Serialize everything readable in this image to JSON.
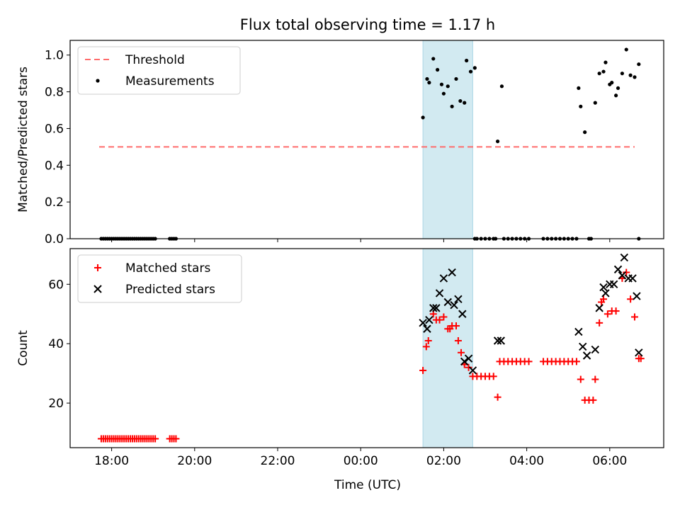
{
  "title": "Flux total observing time = 1.17 h",
  "colors": {
    "threshold": "#ff6b6b",
    "measurement": "#000000",
    "matched": "#ff0000",
    "predicted": "#000000",
    "band": "#add8e6"
  },
  "chart_data": [
    {
      "type": "scatter",
      "name": "top-panel",
      "ylabel": "Matched/Predicted stars",
      "ylim": [
        0,
        1.08
      ],
      "yticks": [
        "0.0",
        "0.2",
        "0.4",
        "0.6",
        "0.8",
        "1.0"
      ],
      "xlim_hours": [
        17.0,
        31.3
      ],
      "highlight_band_hours": [
        25.5,
        26.7
      ],
      "legend": [
        "Threshold",
        "Measurements"
      ],
      "threshold": {
        "label": "Threshold",
        "x_hours": [
          17.7,
          30.6
        ],
        "y": 0.5
      },
      "series": [
        {
          "name": "Measurements",
          "points": [
            [
              17.75,
              0
            ],
            [
              17.8,
              0
            ],
            [
              17.85,
              0
            ],
            [
              17.9,
              0
            ],
            [
              17.95,
              0
            ],
            [
              18.0,
              0
            ],
            [
              18.05,
              0
            ],
            [
              18.1,
              0
            ],
            [
              18.15,
              0
            ],
            [
              18.2,
              0
            ],
            [
              18.25,
              0
            ],
            [
              18.3,
              0
            ],
            [
              18.35,
              0
            ],
            [
              18.4,
              0
            ],
            [
              18.45,
              0
            ],
            [
              18.5,
              0
            ],
            [
              18.55,
              0
            ],
            [
              18.6,
              0
            ],
            [
              18.65,
              0
            ],
            [
              18.7,
              0
            ],
            [
              18.75,
              0
            ],
            [
              18.8,
              0
            ],
            [
              18.85,
              0
            ],
            [
              18.9,
              0
            ],
            [
              18.95,
              0
            ],
            [
              19.0,
              0
            ],
            [
              19.05,
              0
            ],
            [
              19.4,
              0
            ],
            [
              19.45,
              0
            ],
            [
              19.5,
              0
            ],
            [
              19.55,
              0
            ],
            [
              25.5,
              0.66
            ],
            [
              25.6,
              0.87
            ],
            [
              25.65,
              0.85
            ],
            [
              25.75,
              0.98
            ],
            [
              25.85,
              0.92
            ],
            [
              25.95,
              0.84
            ],
            [
              26.0,
              0.79
            ],
            [
              26.1,
              0.83
            ],
            [
              26.2,
              0.72
            ],
            [
              26.3,
              0.87
            ],
            [
              26.4,
              0.75
            ],
            [
              26.5,
              0.74
            ],
            [
              26.55,
              0.97
            ],
            [
              26.65,
              0.91
            ],
            [
              26.75,
              0.93
            ],
            [
              26.75,
              0
            ],
            [
              26.8,
              0
            ],
            [
              26.9,
              0
            ],
            [
              27.0,
              0
            ],
            [
              27.1,
              0
            ],
            [
              27.2,
              0
            ],
            [
              27.25,
              0
            ],
            [
              27.3,
              0.53
            ],
            [
              27.4,
              0.83
            ],
            [
              27.45,
              0
            ],
            [
              27.55,
              0
            ],
            [
              27.65,
              0
            ],
            [
              27.75,
              0
            ],
            [
              27.85,
              0
            ],
            [
              27.95,
              0
            ],
            [
              28.05,
              0
            ],
            [
              28.4,
              0
            ],
            [
              28.5,
              0
            ],
            [
              28.6,
              0
            ],
            [
              28.7,
              0
            ],
            [
              28.8,
              0
            ],
            [
              28.9,
              0
            ],
            [
              29.0,
              0
            ],
            [
              29.1,
              0
            ],
            [
              29.2,
              0
            ],
            [
              29.25,
              0.82
            ],
            [
              29.3,
              0.72
            ],
            [
              29.4,
              0.58
            ],
            [
              29.5,
              0
            ],
            [
              29.55,
              0
            ],
            [
              29.65,
              0.74
            ],
            [
              29.75,
              0.9
            ],
            [
              29.85,
              0.91
            ],
            [
              29.9,
              0.96
            ],
            [
              30.0,
              0.84
            ],
            [
              30.05,
              0.85
            ],
            [
              30.15,
              0.78
            ],
            [
              30.2,
              0.82
            ],
            [
              30.3,
              0.9
            ],
            [
              30.4,
              1.03
            ],
            [
              30.5,
              0.89
            ],
            [
              30.6,
              0.88
            ],
            [
              30.7,
              0.95
            ],
            [
              30.7,
              0
            ]
          ]
        }
      ]
    },
    {
      "type": "scatter",
      "name": "bottom-panel",
      "xlabel": "Time (UTC)",
      "ylabel": "Count",
      "ylim": [
        5,
        72
      ],
      "yticks": [
        "20",
        "40",
        "60"
      ],
      "xticks": [
        "18:00",
        "20:00",
        "22:00",
        "00:00",
        "02:00",
        "04:00",
        "06:00"
      ],
      "xlim_hours": [
        17.0,
        31.3
      ],
      "highlight_band_hours": [
        25.5,
        26.7
      ],
      "legend": [
        "Matched stars",
        "Predicted stars"
      ],
      "series": [
        {
          "name": "Matched stars",
          "points": [
            [
              17.75,
              8
            ],
            [
              17.8,
              8
            ],
            [
              17.85,
              8
            ],
            [
              17.9,
              8
            ],
            [
              17.95,
              8
            ],
            [
              18.0,
              8
            ],
            [
              18.05,
              8
            ],
            [
              18.1,
              8
            ],
            [
              18.15,
              8
            ],
            [
              18.2,
              8
            ],
            [
              18.25,
              8
            ],
            [
              18.3,
              8
            ],
            [
              18.35,
              8
            ],
            [
              18.4,
              8
            ],
            [
              18.45,
              8
            ],
            [
              18.5,
              8
            ],
            [
              18.55,
              8
            ],
            [
              18.6,
              8
            ],
            [
              18.65,
              8
            ],
            [
              18.7,
              8
            ],
            [
              18.75,
              8
            ],
            [
              18.8,
              8
            ],
            [
              18.85,
              8
            ],
            [
              18.9,
              8
            ],
            [
              18.95,
              8
            ],
            [
              19.0,
              8
            ],
            [
              19.05,
              8
            ],
            [
              19.4,
              8
            ],
            [
              19.45,
              8
            ],
            [
              19.5,
              8
            ],
            [
              19.55,
              8
            ],
            [
              25.5,
              31
            ],
            [
              25.58,
              39
            ],
            [
              25.63,
              41
            ],
            [
              25.75,
              50
            ],
            [
              25.82,
              48
            ],
            [
              25.9,
              48
            ],
            [
              26.0,
              49
            ],
            [
              26.1,
              45
            ],
            [
              26.15,
              45
            ],
            [
              26.2,
              46
            ],
            [
              26.3,
              46
            ],
            [
              26.35,
              41
            ],
            [
              26.42,
              37
            ],
            [
              26.5,
              33
            ],
            [
              26.6,
              32
            ],
            [
              26.7,
              29
            ],
            [
              26.8,
              29
            ],
            [
              26.9,
              29
            ],
            [
              27.0,
              29
            ],
            [
              27.1,
              29
            ],
            [
              27.2,
              29
            ],
            [
              27.3,
              22
            ],
            [
              27.35,
              34
            ],
            [
              27.45,
              34
            ],
            [
              27.55,
              34
            ],
            [
              27.65,
              34
            ],
            [
              27.75,
              34
            ],
            [
              27.85,
              34
            ],
            [
              27.95,
              34
            ],
            [
              28.05,
              34
            ],
            [
              28.4,
              34
            ],
            [
              28.5,
              34
            ],
            [
              28.6,
              34
            ],
            [
              28.7,
              34
            ],
            [
              28.8,
              34
            ],
            [
              28.9,
              34
            ],
            [
              29.0,
              34
            ],
            [
              29.1,
              34
            ],
            [
              29.2,
              34
            ],
            [
              29.3,
              28
            ],
            [
              29.4,
              21
            ],
            [
              29.5,
              21
            ],
            [
              29.6,
              21
            ],
            [
              29.65,
              28
            ],
            [
              29.75,
              47
            ],
            [
              29.8,
              54
            ],
            [
              29.85,
              55
            ],
            [
              29.95,
              50
            ],
            [
              30.05,
              51
            ],
            [
              30.15,
              51
            ],
            [
              30.3,
              62
            ],
            [
              30.4,
              64
            ],
            [
              30.5,
              55
            ],
            [
              30.6,
              49
            ],
            [
              30.7,
              35
            ],
            [
              30.75,
              35
            ]
          ]
        },
        {
          "name": "Predicted stars",
          "points": [
            [
              25.5,
              47
            ],
            [
              25.6,
              45
            ],
            [
              25.65,
              48
            ],
            [
              25.75,
              52
            ],
            [
              25.82,
              52
            ],
            [
              25.9,
              57
            ],
            [
              26.0,
              62
            ],
            [
              26.1,
              54
            ],
            [
              26.2,
              64
            ],
            [
              26.25,
              53
            ],
            [
              26.35,
              55
            ],
            [
              26.45,
              50
            ],
            [
              26.5,
              34
            ],
            [
              26.6,
              35
            ],
            [
              26.7,
              31
            ],
            [
              27.3,
              41
            ],
            [
              27.38,
              41
            ],
            [
              29.25,
              44
            ],
            [
              29.35,
              39
            ],
            [
              29.45,
              36
            ],
            [
              29.65,
              38
            ],
            [
              29.75,
              52
            ],
            [
              29.85,
              59
            ],
            [
              29.9,
              57
            ],
            [
              30.0,
              60
            ],
            [
              30.1,
              60
            ],
            [
              30.2,
              65
            ],
            [
              30.3,
              63
            ],
            [
              30.35,
              69
            ],
            [
              30.45,
              62
            ],
            [
              30.55,
              62
            ],
            [
              30.65,
              56
            ],
            [
              30.7,
              37
            ]
          ]
        }
      ]
    }
  ]
}
